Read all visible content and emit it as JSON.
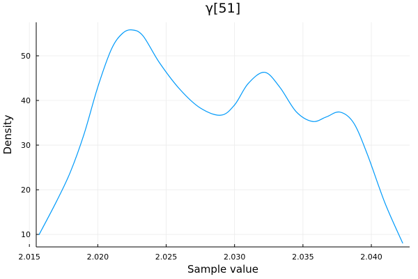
{
  "chart_data": {
    "type": "line",
    "title": "γ[51]",
    "xlabel": "Sample value",
    "ylabel": "Density",
    "xlim": [
      2.0155,
      2.0428
    ],
    "ylim": [
      7.2,
      57.5
    ],
    "xticks": [
      2.015,
      2.02,
      2.025,
      2.03,
      2.035,
      2.04
    ],
    "xtick_labels": [
      "2.015",
      "2.020",
      "2.025",
      "2.030",
      "2.035",
      "2.040"
    ],
    "yticks": [
      10,
      20,
      30,
      40,
      50
    ],
    "ytick_labels": [
      "10",
      "20",
      "30",
      "40",
      "50"
    ],
    "grid": true,
    "legend": "none",
    "colors": {
      "line": "#009AFA",
      "grid": "#EBEBEB",
      "axis": "#000000"
    },
    "series": [
      {
        "x": [
          2.0157,
          2.017,
          2.018,
          2.019,
          2.02,
          2.021,
          2.0218,
          2.0225,
          2.0233,
          2.0245,
          2.026,
          2.0275,
          2.029,
          2.03,
          2.031,
          2.0322,
          2.0333,
          2.0345,
          2.0357,
          2.0367,
          2.0377,
          2.0387,
          2.0397,
          2.041,
          2.0423
        ],
        "y": [
          9.9,
          17.5,
          24.0,
          32.5,
          43.0,
          51.5,
          55.0,
          55.8,
          54.5,
          48.5,
          42.5,
          38.3,
          36.7,
          39.0,
          43.8,
          46.3,
          43.0,
          37.5,
          35.3,
          36.3,
          37.4,
          35.0,
          28.0,
          17.0,
          8.0
        ]
      }
    ]
  }
}
